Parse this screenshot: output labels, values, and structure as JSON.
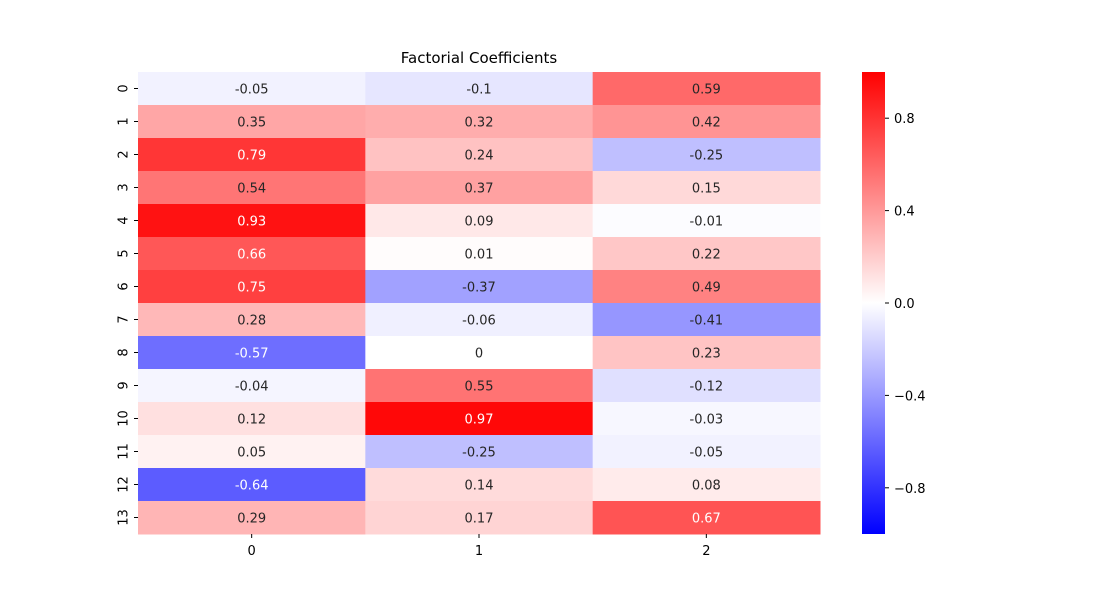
{
  "chart_data": {
    "type": "heatmap",
    "title": "Factorial Coefficients",
    "xlabel": "",
    "ylabel": "",
    "columns": [
      "0",
      "1",
      "2"
    ],
    "rows": [
      "0",
      "1",
      "2",
      "3",
      "4",
      "5",
      "6",
      "7",
      "8",
      "9",
      "10",
      "11",
      "12",
      "13"
    ],
    "values": [
      [
        -0.05,
        -0.1,
        0.59
      ],
      [
        0.35,
        0.32,
        0.42
      ],
      [
        0.79,
        0.24,
        -0.25
      ],
      [
        0.54,
        0.37,
        0.15
      ],
      [
        0.93,
        0.09,
        -0.01
      ],
      [
        0.66,
        0.01,
        0.22
      ],
      [
        0.75,
        -0.37,
        0.49
      ],
      [
        0.28,
        -0.06,
        -0.41
      ],
      [
        -0.57,
        0,
        0.23
      ],
      [
        -0.04,
        0.55,
        -0.12
      ],
      [
        0.12,
        0.97,
        -0.03
      ],
      [
        0.05,
        -0.25,
        -0.05
      ],
      [
        -0.64,
        0.14,
        0.08
      ],
      [
        0.29,
        0.17,
        0.67
      ]
    ],
    "colormap": {
      "low": "#0000ff",
      "mid": "#ffffff",
      "high": "#ff0000"
    },
    "vmin": -1,
    "vmax": 1,
    "colorbar_ticks": [
      0.8,
      0.4,
      0.0,
      -0.4,
      -0.8
    ],
    "grid": false,
    "legend": "colorbar-right"
  }
}
